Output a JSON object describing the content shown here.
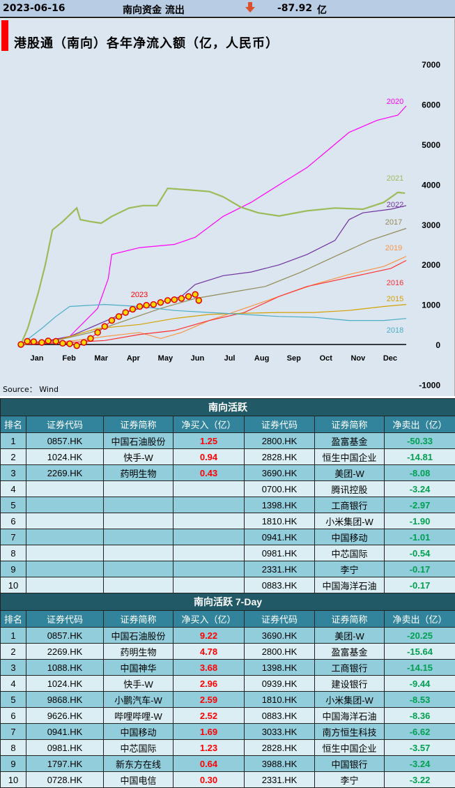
{
  "header": {
    "date": "2023-06-16",
    "label": "南向资金 流出",
    "direction_icon": "down-arrow-icon",
    "value": "-87.92",
    "unit": "亿"
  },
  "chart_data": {
    "type": "line",
    "title": "港股通（南向）各年净流入额（亿，人民币）",
    "source": "Source： Wind",
    "x_ticks": [
      "Jan",
      "Feb",
      "Mar",
      "Apr",
      "May",
      "Jun",
      "Jul",
      "Aug",
      "Sep",
      "Oct",
      "Nov",
      "Dec"
    ],
    "y_ticks": [
      7000,
      6000,
      5000,
      4000,
      3000,
      2000,
      1000,
      0,
      -1000
    ],
    "ylim": [
      -1000,
      7000
    ],
    "xlim": [
      0,
      12
    ],
    "x_unit": "months since Jan 1",
    "ylabel_position": "right",
    "series": [
      {
        "name": "2020",
        "color": "#ff00ff",
        "x": [
          0,
          0.54,
          1.52,
          2.39,
          2.72,
          2.83,
          3.7,
          4.78,
          5.43,
          6.3,
          7.17,
          8.04,
          8.91,
          9.57,
          10.22,
          11.09,
          11.74,
          12
        ],
        "y": [
          0,
          50,
          200,
          900,
          1640,
          2250,
          2420,
          2500,
          2680,
          3200,
          3550,
          3990,
          4420,
          4860,
          5300,
          5600,
          5730,
          5960
        ]
      },
      {
        "name": "2021",
        "color": "#9bbb59",
        "x": [
          0,
          0.22,
          0.54,
          0.76,
          0.98,
          1.3,
          1.74,
          1.85,
          2.17,
          2.5,
          2.83,
          3.37,
          3.8,
          4.24,
          4.57,
          5.11,
          5.87,
          6.3,
          6.85,
          7.39,
          8.04,
          8.91,
          9.78,
          10.65,
          11.3,
          11.74,
          11.96
        ],
        "y": [
          0,
          420,
          1290,
          1990,
          2860,
          3070,
          3410,
          3120,
          3070,
          3030,
          3200,
          3410,
          3470,
          3470,
          3900,
          3870,
          3820,
          3690,
          3430,
          3290,
          3210,
          3340,
          3410,
          3380,
          3550,
          3800,
          3780
        ]
      },
      {
        "name": "2022",
        "color": "#7030a0",
        "x": [
          0,
          0.65,
          1.52,
          2.39,
          3.26,
          4.13,
          5.0,
          5.43,
          6.3,
          7.17,
          8.04,
          8.91,
          9.78,
          10.22,
          10.65,
          11.52,
          12
        ],
        "y": [
          0,
          60,
          200,
          500,
          800,
          1000,
          1200,
          1500,
          1720,
          1810,
          1990,
          2250,
          2600,
          3120,
          3290,
          3380,
          3470
        ]
      },
      {
        "name": "2017",
        "color": "#948a54",
        "x": [
          0,
          1.09,
          2.17,
          3.26,
          4.35,
          5.43,
          6.52,
          7.61,
          8.7,
          9.78,
          10.87,
          12
        ],
        "y": [
          0,
          100,
          300,
          600,
          900,
          1150,
          1300,
          1450,
          1800,
          2200,
          2600,
          2900
        ]
      },
      {
        "name": "2019",
        "color": "#f79646",
        "x": [
          0,
          1.52,
          2.61,
          3.7,
          4.35,
          5.0,
          5.87,
          6.96,
          8.04,
          9.13,
          10.22,
          11.3,
          12
        ],
        "y": [
          0,
          80,
          200,
          300,
          150,
          300,
          600,
          900,
          1200,
          1500,
          1750,
          1950,
          2200
        ]
      },
      {
        "name": "2016",
        "color": "#ff3030",
        "x": [
          0,
          1.52,
          2.61,
          3.7,
          4.78,
          5.87,
          6.96,
          8.04,
          8.91,
          9.78,
          10.65,
          11.52,
          12
        ],
        "y": [
          0,
          50,
          100,
          250,
          350,
          600,
          800,
          1200,
          1450,
          1600,
          1750,
          1900,
          2100
        ]
      },
      {
        "name": "2015",
        "color": "#d4a000",
        "x": [
          0,
          1.09,
          2.39,
          3.7,
          4.78,
          5.87,
          6.96,
          8.04,
          9.13,
          10.22,
          11.3,
          12
        ],
        "y": [
          0,
          100,
          400,
          500,
          650,
          750,
          780,
          800,
          800,
          850,
          950,
          1000
        ]
      },
      {
        "name": "2018",
        "color": "#4bacc6",
        "x": [
          0,
          0.65,
          1.09,
          1.52,
          2.61,
          3.7,
          4.78,
          5.87,
          6.96,
          8.04,
          9.13,
          10.22,
          11.3,
          12
        ],
        "y": [
          0,
          400,
          700,
          950,
          1000,
          950,
          850,
          800,
          750,
          700,
          680,
          600,
          600,
          650
        ]
      },
      {
        "name": "2023",
        "color": "#ff0000",
        "marker": "#ffd700",
        "x": [
          0,
          0.2,
          0.4,
          0.65,
          0.85,
          1.09,
          1.3,
          1.52,
          1.74,
          1.96,
          2.17,
          2.39,
          2.61,
          2.83,
          3.05,
          3.26,
          3.48,
          3.7,
          3.91,
          4.13,
          4.35,
          4.57,
          4.78,
          5.0,
          5.22,
          5.43,
          5.54
        ],
        "y": [
          0,
          80,
          70,
          50,
          90,
          80,
          30,
          20,
          -30,
          50,
          150,
          300,
          450,
          600,
          700,
          800,
          880,
          950,
          980,
          1000,
          1050,
          1100,
          1120,
          1150,
          1200,
          1250,
          1100
        ]
      }
    ]
  },
  "table1": {
    "title": "南向活跃",
    "columns": [
      "排名",
      "证券代码",
      "证券简称",
      "净买入（亿）",
      "证券代码",
      "证券简称",
      "净卖出（亿）"
    ],
    "rows": [
      [
        "1",
        "0857.HK",
        "中国石油股份",
        "1.25",
        "2800.HK",
        "盈富基金",
        "-50.33"
      ],
      [
        "2",
        "1024.HK",
        "快手-W",
        "0.94",
        "2828.HK",
        "恒生中国企业",
        "-14.81"
      ],
      [
        "3",
        "2269.HK",
        "药明生物",
        "0.43",
        "3690.HK",
        "美团-W",
        "-8.08"
      ],
      [
        "4",
        "",
        "",
        "",
        "0700.HK",
        "腾讯控股",
        "-3.24"
      ],
      [
        "5",
        "",
        "",
        "",
        "1398.HK",
        "工商银行",
        "-2.97"
      ],
      [
        "6",
        "",
        "",
        "",
        "1810.HK",
        "小米集团-W",
        "-1.90"
      ],
      [
        "7",
        "",
        "",
        "",
        "0941.HK",
        "中国移动",
        "-1.01"
      ],
      [
        "8",
        "",
        "",
        "",
        "0981.HK",
        "中芯国际",
        "-0.54"
      ],
      [
        "9",
        "",
        "",
        "",
        "2331.HK",
        "李宁",
        "-0.17"
      ],
      [
        "10",
        "",
        "",
        "",
        "0883.HK",
        "中国海洋石油",
        "-0.17"
      ]
    ]
  },
  "table2": {
    "title": "南向活跃 7-Day",
    "columns": [
      "排名",
      "证券代码",
      "证券简称",
      "净买入（亿）",
      "证券代码",
      "证券简称",
      "净卖出（亿）"
    ],
    "rows": [
      [
        "1",
        "0857.HK",
        "中国石油股份",
        "9.22",
        "3690.HK",
        "美团-W",
        "-20.25"
      ],
      [
        "2",
        "2269.HK",
        "药明生物",
        "4.78",
        "2800.HK",
        "盈富基金",
        "-15.64"
      ],
      [
        "3",
        "1088.HK",
        "中国神华",
        "3.68",
        "1398.HK",
        "工商银行",
        "-14.15"
      ],
      [
        "4",
        "1024.HK",
        "快手-W",
        "2.96",
        "0939.HK",
        "建设银行",
        "-9.44"
      ],
      [
        "5",
        "9868.HK",
        "小鹏汽车-W",
        "2.59",
        "1810.HK",
        "小米集团-W",
        "-8.53"
      ],
      [
        "6",
        "9626.HK",
        "哔哩哔哩-W",
        "2.52",
        "0883.HK",
        "中国海洋石油",
        "-8.36"
      ],
      [
        "7",
        "0941.HK",
        "中国移动",
        "1.69",
        "3033.HK",
        "南方恒生科技",
        "-6.62"
      ],
      [
        "8",
        "0981.HK",
        "中芯国际",
        "1.23",
        "2828.HK",
        "恒生中国企业",
        "-3.57"
      ],
      [
        "9",
        "1797.HK",
        "新东方在线",
        "0.64",
        "3988.HK",
        "中国银行",
        "-3.24"
      ],
      [
        "10",
        "0728.HK",
        "中国电信",
        "0.30",
        "2331.HK",
        "李宁",
        "-3.22"
      ]
    ]
  }
}
